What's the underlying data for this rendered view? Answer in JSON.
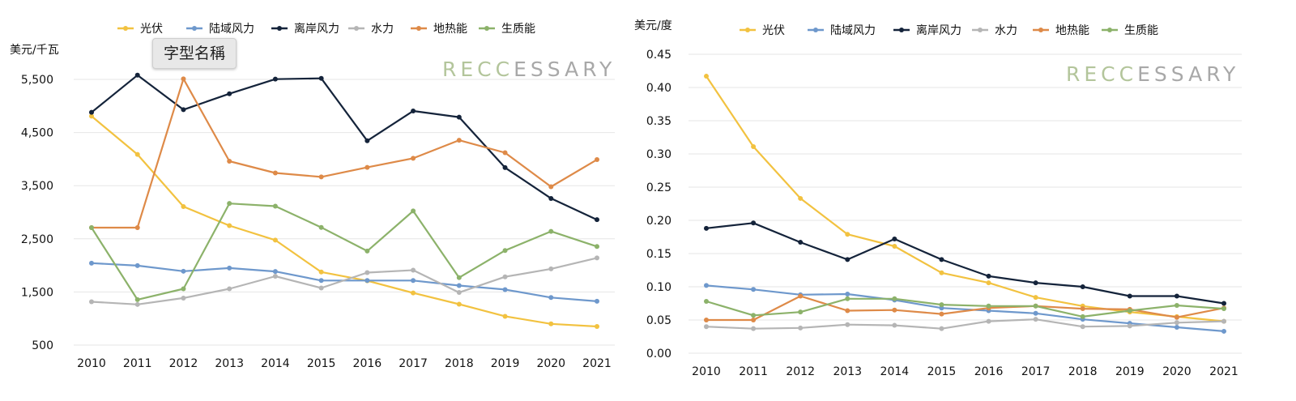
{
  "watermark": {
    "part1": "RECC",
    "part2": "ESSARY",
    "color1": "#9ab27a",
    "color2": "#7a7a7a"
  },
  "tooltip": "字型名稱",
  "series_colors": {
    "光伏": "#f2c240",
    "陆域风力": "#6e98cc",
    "离岸风力": "#14233a",
    "水力": "#b5b5b5",
    "地热能": "#de8a48",
    "生质能": "#8cb26a"
  },
  "chart_data": [
    {
      "type": "line",
      "ylabel": "美元/千瓦",
      "x": [
        "2010",
        "2011",
        "2012",
        "2013",
        "2014",
        "2015",
        "2016",
        "2017",
        "2018",
        "2019",
        "2020",
        "2021"
      ],
      "ylim": [
        500,
        5500
      ],
      "yticks": [
        "500",
        "1,500",
        "2,500",
        "3,500",
        "4,500",
        "5,500"
      ],
      "ytick_values": [
        500,
        1500,
        2500,
        3500,
        4500,
        5500
      ],
      "series": [
        {
          "name": "光伏",
          "values": [
            4808,
            4088,
            3106,
            2748,
            2476,
            1875,
            1710,
            1481,
            1270,
            1042,
            900,
            850
          ]
        },
        {
          "name": "陆域风力",
          "values": [
            2042,
            1995,
            1890,
            1950,
            1885,
            1715,
            1715,
            1715,
            1620,
            1545,
            1395,
            1325
          ]
        },
        {
          "name": "离岸风力",
          "values": [
            4880,
            5580,
            4930,
            5230,
            5505,
            5520,
            4345,
            4905,
            4790,
            3840,
            3260,
            2860
          ]
        },
        {
          "name": "水力",
          "values": [
            1315,
            1265,
            1385,
            1560,
            1795,
            1575,
            1865,
            1910,
            1490,
            1785,
            1935,
            2140
          ]
        },
        {
          "name": "地热能",
          "values": [
            2710,
            2710,
            5510,
            3960,
            3740,
            3665,
            3845,
            4015,
            4355,
            4120,
            3480,
            3990
          ]
        },
        {
          "name": "生质能",
          "values": [
            2710,
            1355,
            1560,
            3165,
            3115,
            2715,
            2270,
            3025,
            1770,
            2280,
            2640,
            2355
          ]
        }
      ]
    },
    {
      "type": "line",
      "ylabel": "美元/度",
      "x": [
        "2010",
        "2011",
        "2012",
        "2013",
        "2014",
        "2015",
        "2016",
        "2017",
        "2018",
        "2019",
        "2020",
        "2021"
      ],
      "ylim": [
        0,
        0.45
      ],
      "yticks": [
        "0.00",
        "0.05",
        "0.10",
        "0.15",
        "0.20",
        "0.25",
        "0.30",
        "0.35",
        "0.40",
        "0.45"
      ],
      "ytick_values": [
        0,
        0.05,
        0.1,
        0.15,
        0.2,
        0.25,
        0.3,
        0.35,
        0.4,
        0.45
      ],
      "series": [
        {
          "name": "光伏",
          "values": [
            0.417,
            0.311,
            0.233,
            0.179,
            0.161,
            0.121,
            0.106,
            0.084,
            0.071,
            0.062,
            0.055,
            0.048
          ]
        },
        {
          "name": "陆域风力",
          "values": [
            0.102,
            0.096,
            0.088,
            0.089,
            0.08,
            0.068,
            0.064,
            0.06,
            0.051,
            0.045,
            0.039,
            0.033
          ]
        },
        {
          "name": "离岸风力",
          "values": [
            0.188,
            0.196,
            0.167,
            0.141,
            0.172,
            0.141,
            0.116,
            0.106,
            0.1,
            0.086,
            0.086,
            0.075
          ]
        },
        {
          "name": "水力",
          "values": [
            0.04,
            0.037,
            0.038,
            0.043,
            0.042,
            0.037,
            0.048,
            0.051,
            0.04,
            0.041,
            0.046,
            0.048
          ]
        },
        {
          "name": "地热能",
          "values": [
            0.05,
            0.05,
            0.086,
            0.064,
            0.065,
            0.059,
            0.068,
            0.071,
            0.067,
            0.066,
            0.054,
            0.068
          ]
        },
        {
          "name": "生质能",
          "values": [
            0.078,
            0.057,
            0.062,
            0.082,
            0.082,
            0.073,
            0.071,
            0.071,
            0.055,
            0.064,
            0.072,
            0.067
          ]
        }
      ]
    }
  ]
}
